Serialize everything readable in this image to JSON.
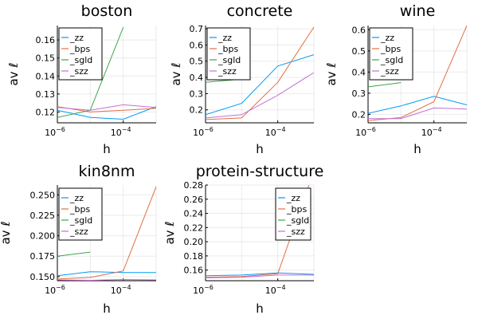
{
  "colors": {
    "zz": "#009AFA",
    "bps": "#E26F46",
    "sgld": "#3EA44E",
    "szz": "#C271D2"
  },
  "chart_data": [
    {
      "type": "line",
      "title": "boston",
      "xlabel": "h",
      "ylabel": "av ℓ",
      "xscale": "log10",
      "xlim": [
        1e-06,
        0.001
      ],
      "ylim": [
        0.114,
        0.168
      ],
      "x_ticks": [
        {
          "base": "10",
          "exp": "−6",
          "value": 1e-06
        },
        {
          "base": "10",
          "exp": "−4",
          "value": 0.0001
        }
      ],
      "y_ticks": [
        "0.12",
        "0.13",
        "0.14",
        "0.15",
        "0.16"
      ],
      "y_tick_values": [
        0.12,
        0.13,
        0.14,
        0.15,
        0.16
      ],
      "legend": "top-left",
      "grid": true,
      "series": [
        {
          "name": "_zz",
          "color": "zz",
          "x": [
            1e-06,
            1e-05,
            0.0001,
            0.001
          ],
          "y": [
            0.121,
            0.117,
            0.116,
            0.123
          ]
        },
        {
          "name": "_bps",
          "color": "bps",
          "x": [
            1e-06,
            1e-05,
            0.0001,
            0.001
          ],
          "y": [
            0.123,
            0.12,
            0.121,
            0.122
          ]
        },
        {
          "name": "_sgld",
          "color": "sgld",
          "x": [
            1e-06,
            1e-05,
            0.0001
          ],
          "y": [
            0.117,
            0.121,
            0.167
          ]
        },
        {
          "name": "_szz",
          "color": "szz",
          "x": [
            1e-06,
            1e-05,
            0.0001,
            0.001
          ],
          "y": [
            0.1225,
            0.121,
            0.124,
            0.1225
          ]
        }
      ]
    },
    {
      "type": "line",
      "title": "concrete",
      "xlabel": "h",
      "ylabel": "av ℓ",
      "xscale": "log10",
      "xlim": [
        1e-06,
        0.001
      ],
      "ylim": [
        0.12,
        0.72
      ],
      "x_ticks": [
        {
          "base": "10",
          "exp": "−6",
          "value": 1e-06
        },
        {
          "base": "10",
          "exp": "−4",
          "value": 0.0001
        }
      ],
      "y_ticks": [
        "0.2",
        "0.3",
        "0.4",
        "0.5",
        "0.6",
        "0.7"
      ],
      "y_tick_values": [
        0.2,
        0.3,
        0.4,
        0.5,
        0.6,
        0.7
      ],
      "legend": "top-left",
      "grid": true,
      "series": [
        {
          "name": "_zz",
          "color": "zz",
          "x": [
            1e-06,
            1e-05,
            0.0001,
            0.001
          ],
          "y": [
            0.17,
            0.24,
            0.47,
            0.54
          ]
        },
        {
          "name": "_bps",
          "color": "bps",
          "x": [
            1e-06,
            1e-05,
            0.0001,
            0.001
          ],
          "y": [
            0.14,
            0.15,
            0.37,
            0.71
          ]
        },
        {
          "name": "_sgld",
          "color": "sgld",
          "x": [
            1e-06,
            1e-05
          ],
          "y": [
            0.37,
            0.39
          ]
        },
        {
          "name": "_szz",
          "color": "szz",
          "x": [
            1e-06,
            1e-05,
            0.0001,
            0.001
          ],
          "y": [
            0.15,
            0.17,
            0.29,
            0.43
          ]
        }
      ]
    },
    {
      "type": "line",
      "title": "wine",
      "xlabel": "h",
      "ylabel": "av ℓ",
      "xscale": "log10",
      "xlim": [
        1e-06,
        0.001
      ],
      "ylim": [
        0.16,
        0.62
      ],
      "x_ticks": [
        {
          "base": "10",
          "exp": "−6",
          "value": 1e-06
        },
        {
          "base": "10",
          "exp": "−4",
          "value": 0.0001
        }
      ],
      "y_ticks": [
        "0.2",
        "0.3",
        "0.4",
        "0.5",
        "0.6"
      ],
      "y_tick_values": [
        0.2,
        0.3,
        0.4,
        0.5,
        0.6
      ],
      "legend": "top-left",
      "grid": true,
      "series": [
        {
          "name": "_zz",
          "color": "zz",
          "x": [
            1e-06,
            1e-05,
            0.0001,
            0.001
          ],
          "y": [
            0.205,
            0.24,
            0.285,
            0.245
          ]
        },
        {
          "name": "_bps",
          "color": "bps",
          "x": [
            1e-06,
            1e-05,
            0.0001,
            0.001
          ],
          "y": [
            0.17,
            0.185,
            0.26,
            0.62
          ]
        },
        {
          "name": "_sgld",
          "color": "sgld",
          "x": [
            1e-06,
            1e-05
          ],
          "y": [
            0.33,
            0.35
          ]
        },
        {
          "name": "_szz",
          "color": "szz",
          "x": [
            1e-06,
            1e-05,
            0.0001,
            0.001
          ],
          "y": [
            0.18,
            0.18,
            0.23,
            0.225
          ]
        }
      ]
    },
    {
      "type": "line",
      "title": "kin8nm",
      "xlabel": "h",
      "ylabel": "av ℓ",
      "xscale": "log10",
      "xlim": [
        1e-06,
        0.001
      ],
      "ylim": [
        0.145,
        0.262
      ],
      "x_ticks": [
        {
          "base": "10",
          "exp": "−6",
          "value": 1e-06
        },
        {
          "base": "10",
          "exp": "−4",
          "value": 0.0001
        }
      ],
      "y_ticks": [
        "0.150",
        "0.175",
        "0.200",
        "0.225",
        "0.250"
      ],
      "y_tick_values": [
        0.15,
        0.175,
        0.2,
        0.225,
        0.25
      ],
      "legend": "top-left",
      "grid": true,
      "series": [
        {
          "name": "_zz",
          "color": "zz",
          "x": [
            1e-06,
            1e-05,
            0.0001,
            0.001
          ],
          "y": [
            0.151,
            0.156,
            0.155,
            0.155
          ]
        },
        {
          "name": "_bps",
          "color": "bps",
          "x": [
            1e-06,
            1e-05,
            0.0001,
            0.001
          ],
          "y": [
            0.147,
            0.149,
            0.157,
            0.26
          ]
        },
        {
          "name": "_sgld",
          "color": "sgld",
          "x": [
            1e-06,
            1e-05
          ],
          "y": [
            0.175,
            0.18
          ]
        },
        {
          "name": "_szz",
          "color": "szz",
          "x": [
            1e-06,
            1e-05,
            0.0001,
            0.001
          ],
          "y": [
            0.146,
            0.1455,
            0.1465,
            0.146
          ]
        }
      ]
    },
    {
      "type": "line",
      "title": "protein-structure",
      "xlabel": "h",
      "ylabel": "av ℓ",
      "xscale": "log10",
      "xlim": [
        1e-06,
        0.001
      ],
      "ylim": [
        0.145,
        0.28
      ],
      "x_ticks": [
        {
          "base": "10",
          "exp": "−6",
          "value": 1e-06
        },
        {
          "base": "10",
          "exp": "−4",
          "value": 0.0001
        }
      ],
      "y_ticks": [
        "0.16",
        "0.18",
        "0.20",
        "0.22",
        "0.24",
        "0.26",
        "0.28"
      ],
      "y_tick_values": [
        0.16,
        0.18,
        0.2,
        0.22,
        0.24,
        0.26,
        0.28
      ],
      "legend": "top-right",
      "grid": true,
      "series": [
        {
          "name": "_zz",
          "color": "zz",
          "x": [
            1e-06,
            1e-05,
            0.0001,
            0.001
          ],
          "y": [
            0.152,
            0.153,
            0.156,
            0.154
          ]
        },
        {
          "name": "_bps",
          "color": "bps",
          "x": [
            1e-06,
            1e-05,
            0.0001,
            0.001
          ],
          "y": [
            0.15,
            0.151,
            0.155,
            0.3
          ]
        },
        {
          "name": "_sgld",
          "color": "sgld",
          "x": [],
          "y": []
        },
        {
          "name": "_szz",
          "color": "szz",
          "x": [
            1e-06,
            1e-05,
            0.0001,
            0.001
          ],
          "y": [
            0.149,
            0.15,
            0.153,
            0.153
          ]
        }
      ]
    }
  ]
}
